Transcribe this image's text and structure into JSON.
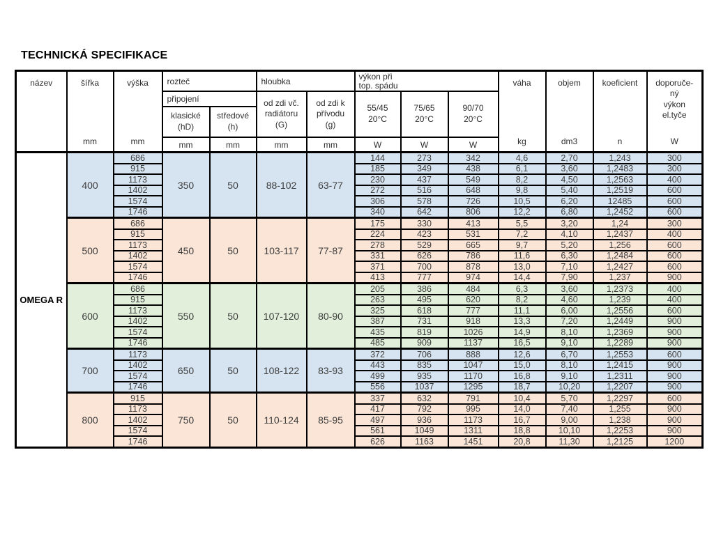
{
  "page_title": "TECHNICKÁ SPECIFIKACE",
  "product_name": "OMEGA R",
  "colors": {
    "group_blue": "#d6e4f1",
    "group_peach": "#fbe5d6",
    "group_green": "#e2efda",
    "border": "#000000"
  },
  "header": {
    "nazev": {
      "label": "název",
      "unit": ""
    },
    "sirka": {
      "label": "šířka",
      "unit": "mm"
    },
    "vyska": {
      "label": "výška",
      "unit": "mm"
    },
    "roztec": {
      "label": "rozteč",
      "sub": "připojení",
      "klasicke": "klasické\n(hD)",
      "stredove": "středové\n(h)",
      "unit": "mm"
    },
    "hloubka": {
      "label": "hloubka",
      "col_G": "od zdi vč.\nradiátoru\n(G)",
      "col_g": "od zdi k\npřívodu\n(g)",
      "unit": "mm"
    },
    "vykon": {
      "label": "výkon při\ntop. spádu",
      "t1": "55/45\n20°C",
      "t2": "75/65\n20°C",
      "t3": "90/70\n20°C",
      "unit": "W"
    },
    "vaha": {
      "label": "váha",
      "unit": "kg"
    },
    "objem": {
      "label": "objem",
      "unit": "dm3"
    },
    "koeficient": {
      "label": "koeficient",
      "unit": "n"
    },
    "doporuceny": {
      "label": "doporuče-\nný\nvýkon\nel.tyče",
      "unit": "W"
    }
  },
  "table": {
    "groups": [
      {
        "sirka": "400",
        "color": "group_blue",
        "klasicke": "350",
        "stredove": "50",
        "hloubka_G": "88-102",
        "hloubka_g": "63-77",
        "rows": [
          [
            "686",
            "144",
            "273",
            "342",
            "4,6",
            "2,70",
            "1,243",
            "300"
          ],
          [
            "915",
            "185",
            "349",
            "438",
            "6,1",
            "3,60",
            "1,2483",
            "300"
          ],
          [
            "1173",
            "230",
            "437",
            "549",
            "8,2",
            "4,50",
            "1,2563",
            "400"
          ],
          [
            "1402",
            "272",
            "516",
            "648",
            "9,8",
            "5,40",
            "1,2519",
            "600"
          ],
          [
            "1574",
            "306",
            "578",
            "726",
            "10,5",
            "6,20",
            "12485",
            "600"
          ],
          [
            "1746",
            "340",
            "642",
            "806",
            "12,2",
            "6,80",
            "1,2452",
            "600"
          ]
        ]
      },
      {
        "sirka": "500",
        "color": "group_peach",
        "klasicke": "450",
        "stredove": "50",
        "hloubka_G": "103-117",
        "hloubka_g": "77-87",
        "rows": [
          [
            "686",
            "175",
            "330",
            "413",
            "5,5",
            "3,20",
            "1,24",
            "300"
          ],
          [
            "915",
            "224",
            "423",
            "531",
            "7,2",
            "4,10",
            "1,2437",
            "400"
          ],
          [
            "1173",
            "278",
            "529",
            "665",
            "9,7",
            "5,20",
            "1,256",
            "600"
          ],
          [
            "1402",
            "331",
            "626",
            "786",
            "11,6",
            "6,30",
            "1,2484",
            "600"
          ],
          [
            "1574",
            "371",
            "700",
            "878",
            "13,0",
            "7,10",
            "1,2427",
            "600"
          ],
          [
            "1746",
            "413",
            "777",
            "974",
            "14,4",
            "7,90",
            "1,237",
            "900"
          ]
        ]
      },
      {
        "sirka": "600",
        "color": "group_green",
        "klasicke": "550",
        "stredove": "50",
        "hloubka_G": "107-120",
        "hloubka_g": "80-90",
        "rows": [
          [
            "686",
            "205",
            "386",
            "484",
            "6,3",
            "3,60",
            "1,2373",
            "400"
          ],
          [
            "915",
            "263",
            "495",
            "620",
            "8,2",
            "4,60",
            "1,239",
            "400"
          ],
          [
            "1173",
            "325",
            "618",
            "777",
            "11,1",
            "6,00",
            "1,2556",
            "600"
          ],
          [
            "1402",
            "387",
            "731",
            "918",
            "13,3",
            "7,20",
            "1,2449",
            "900"
          ],
          [
            "1574",
            "435",
            "819",
            "1026",
            "14,9",
            "8,10",
            "1,2369",
            "900"
          ],
          [
            "1746",
            "485",
            "909",
            "1137",
            "16,5",
            "9,10",
            "1,2289",
            "900"
          ]
        ]
      },
      {
        "sirka": "700",
        "color": "group_blue",
        "klasicke": "650",
        "stredove": "50",
        "hloubka_G": "108-122",
        "hloubka_g": "83-93",
        "rows": [
          [
            "1173",
            "372",
            "706",
            "888",
            "12,6",
            "6,70",
            "1,2553",
            "600"
          ],
          [
            "1402",
            "443",
            "835",
            "1047",
            "15,0",
            "8,10",
            "1,2415",
            "900"
          ],
          [
            "1574",
            "499",
            "935",
            "1170",
            "16,8",
            "9,10",
            "1,2311",
            "900"
          ],
          [
            "1746",
            "556",
            "1037",
            "1295",
            "18,7",
            "10,20",
            "1,2207",
            "900"
          ]
        ]
      },
      {
        "sirka": "800",
        "color": "group_peach",
        "klasicke": "750",
        "stredove": "50",
        "hloubka_G": "110-124",
        "hloubka_g": "85-95",
        "rows": [
          [
            "915",
            "337",
            "632",
            "791",
            "10,4",
            "5,70",
            "1,2297",
            "600"
          ],
          [
            "1173",
            "417",
            "792",
            "995",
            "14,0",
            "7,40",
            "1,255",
            "900"
          ],
          [
            "1402",
            "497",
            "936",
            "1173",
            "16,7",
            "9,00",
            "1,238",
            "900"
          ],
          [
            "1574",
            "561",
            "1049",
            "1311",
            "18,8",
            "10,10",
            "1,2253",
            "900"
          ],
          [
            "1746",
            "626",
            "1163",
            "1451",
            "20,8",
            "11,30",
            "1,2125",
            "1200"
          ]
        ]
      }
    ]
  }
}
